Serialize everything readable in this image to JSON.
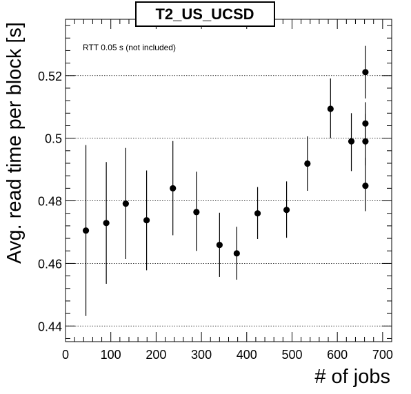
{
  "chart_data": {
    "type": "scatter",
    "title": "T2_US_UCSD",
    "xlabel": "# of jobs",
    "ylabel": "Avg. read time per block [s]",
    "annotation": "RTT 0.05 s (not included)",
    "xlim": [
      0,
      720
    ],
    "ylim": [
      0.435,
      0.538
    ],
    "grid": "horizontal dotted at major y ticks",
    "x_ticks": [
      0,
      100,
      200,
      300,
      400,
      500,
      600,
      700
    ],
    "x_tick_labels": [
      "0",
      "100",
      "200",
      "300",
      "400",
      "500",
      "600",
      "700"
    ],
    "y_ticks": [
      0.44,
      0.46,
      0.48,
      0.5,
      0.52
    ],
    "y_tick_labels": [
      "0.44",
      "0.46",
      "0.48",
      "0.5",
      "0.52"
    ],
    "series": [
      {
        "points": [
          {
            "x": 45,
            "y": 0.4705,
            "yerr_low": 0.4432,
            "yerr_high": 0.4978
          },
          {
            "x": 90,
            "y": 0.4729,
            "yerr_low": 0.4535,
            "yerr_high": 0.4924
          },
          {
            "x": 133,
            "y": 0.4791,
            "yerr_low": 0.4614,
            "yerr_high": 0.4969
          },
          {
            "x": 179,
            "y": 0.4738,
            "yerr_low": 0.4578,
            "yerr_high": 0.4897
          },
          {
            "x": 237,
            "y": 0.484,
            "yerr_low": 0.469,
            "yerr_high": 0.4991
          },
          {
            "x": 289,
            "y": 0.4764,
            "yerr_low": 0.464,
            "yerr_high": 0.4893
          },
          {
            "x": 340,
            "y": 0.4659,
            "yerr_low": 0.4557,
            "yerr_high": 0.4762
          },
          {
            "x": 378,
            "y": 0.4632,
            "yerr_low": 0.4548,
            "yerr_high": 0.4717
          },
          {
            "x": 424,
            "y": 0.476,
            "yerr_low": 0.4678,
            "yerr_high": 0.4844
          },
          {
            "x": 488,
            "y": 0.4771,
            "yerr_low": 0.4682,
            "yerr_high": 0.4862
          },
          {
            "x": 534,
            "y": 0.4919,
            "yerr_low": 0.4832,
            "yerr_high": 0.5006
          },
          {
            "x": 585,
            "y": 0.5094,
            "yerr_low": 0.5,
            "yerr_high": 0.5191
          },
          {
            "x": 631,
            "y": 0.499,
            "yerr_low": 0.4895,
            "yerr_high": 0.508
          },
          {
            "x": 662,
            "y": 0.5211,
            "yerr_low": 0.5127,
            "yerr_high": 0.5295
          },
          {
            "x": 662,
            "y": 0.5047,
            "yerr_low": 0.4975,
            "yerr_high": 0.5115
          },
          {
            "x": 662,
            "y": 0.499,
            "yerr_low": 0.4913,
            "yerr_high": 0.5078
          },
          {
            "x": 662,
            "y": 0.4848,
            "yerr_low": 0.4767,
            "yerr_high": 0.4938
          }
        ]
      }
    ]
  }
}
